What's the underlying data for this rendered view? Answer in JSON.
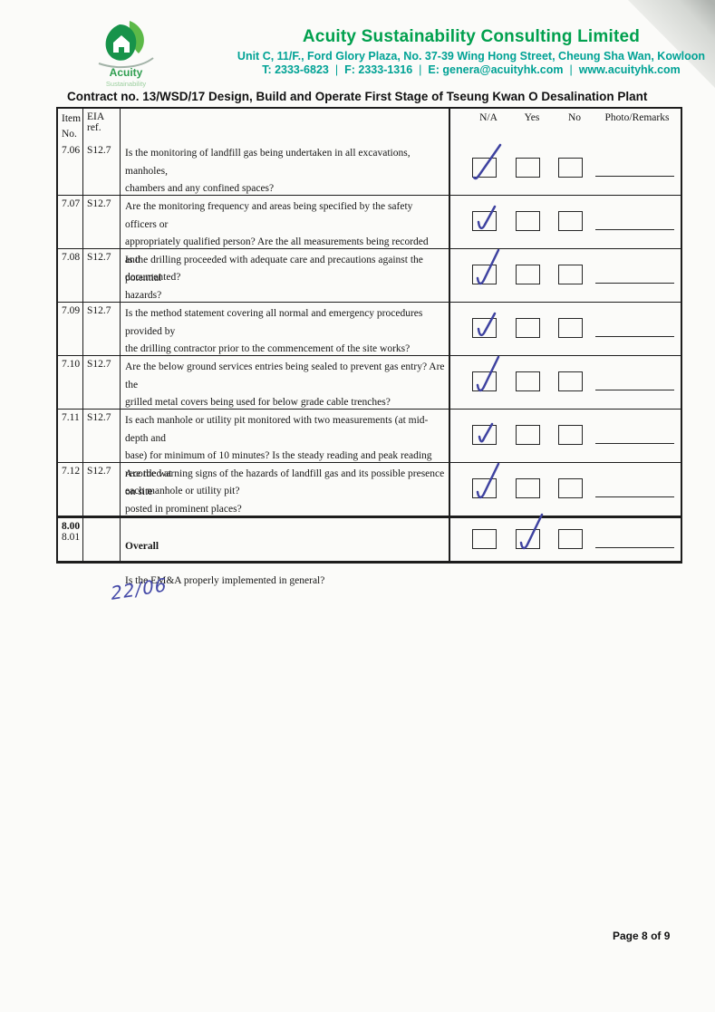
{
  "logo": {
    "name": "Acuity",
    "tagline": "Sustainability"
  },
  "header": {
    "company": "Acuity Sustainability Consulting Limited",
    "address": "Unit C, 11/F., Ford Glory Plaza, No. 37-39 Wing Hong Street, Cheung Sha Wan, Kowloon",
    "tel": "T: 2333-6823",
    "fax": "F: 2333-1316",
    "email": "E: genera@acuityhk.com",
    "website": "www.acuityhk.com",
    "separator": "|"
  },
  "contract_title": "Contract no.  13/WSD/17 Design, Build and Operate First Stage of Tseung Kwan O Desalination Plant",
  "checklist": {
    "columns": {
      "item": "Item",
      "item2": "No.",
      "eia": "EIA ref.",
      "na": "N/A",
      "yes": "Yes",
      "no": "No",
      "remarks": "Photo/Remarks"
    },
    "rows": [
      {
        "item_no": "7.06",
        "eia_ref": "S12.7",
        "question": "Is the monitoring of landfill gas being undertaken in all excavations, manholes,\nchambers and any confined spaces?",
        "checked": "na"
      },
      {
        "item_no": "7.07",
        "eia_ref": "S12.7",
        "question": "Are the monitoring frequency and areas being specified by the safety officers or\nappropriately qualified person? Are the all measurements being recorded and\ndocumented?",
        "checked": "na"
      },
      {
        "item_no": "7.08",
        "eia_ref": "S12.7",
        "question": "Is the drilling proceeded with adequate care and precautions against the potential\nhazards?",
        "checked": "na"
      },
      {
        "item_no": "7.09",
        "eia_ref": "S12.7",
        "question": "Is the method statement covering all normal and emergency procedures provided by\nthe drilling contractor prior to the commencement of the site works?",
        "checked": "na"
      },
      {
        "item_no": "7.10",
        "eia_ref": "S12.7",
        "question": "Are the below ground services entries being sealed to prevent gas entry? Are the\ngrilled metal covers being used for below grade cable trenches?",
        "checked": "na"
      },
      {
        "item_no": "7.11",
        "eia_ref": "S12.7",
        "question": "Is each manhole or utility pit monitored with two measurements (at mid-depth and\nbase) for minimum of 10 minutes? Is the steady reading and peak reading recorded at\neach manhole or utility pit?",
        "checked": "na"
      },
      {
        "item_no": "7.12",
        "eia_ref": "S12.7",
        "question": "Are the warning signs of the hazards of landfill gas and its possible presence on site\nposted in prominent places?",
        "checked": "na"
      }
    ],
    "overall": {
      "item_no": "8.00",
      "sub_item_no": "8.01",
      "eia_ref": "",
      "heading": "Overall",
      "question": "Is the EM&A properly implemented in general?",
      "checked": "yes"
    }
  },
  "annotations": {
    "handwritten_date": "22/06",
    "ink_color": "#3e42a0"
  },
  "footer": {
    "prefix": "Page",
    "page_number": "8",
    "of": "of",
    "total_pages": "9"
  },
  "colors": {
    "brand_green": "#00a04e",
    "contact_teal": "#00a295",
    "table_border": "#1d1d1d"
  }
}
